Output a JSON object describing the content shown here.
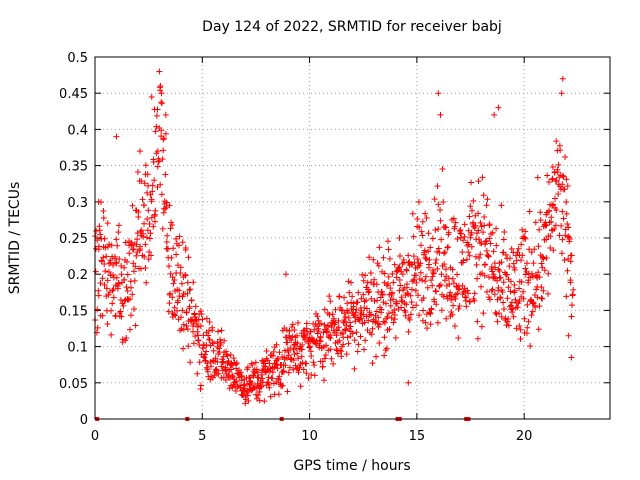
{
  "chart_data": {
    "type": "scatter",
    "title": "Day 124 of 2022, SRMTID for receiver babj",
    "xlabel": "GPS time / hours",
    "ylabel": "SRMTID / TECUs",
    "xlim": [
      0,
      24
    ],
    "ylim": [
      0,
      0.5
    ],
    "xticks": [
      "0",
      "5",
      "10",
      "15",
      "20"
    ],
    "yticks": [
      "0",
      "0.05",
      "0.1",
      "0.15",
      "0.2",
      "0.25",
      "0.3",
      "0.35",
      "0.4",
      "0.45",
      "0.5"
    ],
    "grid": true,
    "marker": "+",
    "color": "#ff0000",
    "zero_markers_x": [
      0.1,
      4.3,
      8.7,
      14.1,
      14.2,
      17.3,
      17.4
    ],
    "trend": [
      {
        "x": 0.0,
        "y": 0.2,
        "spread": 0.06
      },
      {
        "x": 0.6,
        "y": 0.2,
        "spread": 0.06
      },
      {
        "x": 1.3,
        "y": 0.17,
        "spread": 0.06
      },
      {
        "x": 1.9,
        "y": 0.23,
        "spread": 0.06
      },
      {
        "x": 2.5,
        "y": 0.28,
        "spread": 0.07
      },
      {
        "x": 3.0,
        "y": 0.37,
        "spread": 0.06
      },
      {
        "x": 3.6,
        "y": 0.2,
        "spread": 0.06
      },
      {
        "x": 4.3,
        "y": 0.15,
        "spread": 0.05
      },
      {
        "x": 5.0,
        "y": 0.11,
        "spread": 0.04
      },
      {
        "x": 6.0,
        "y": 0.08,
        "spread": 0.025
      },
      {
        "x": 7.0,
        "y": 0.045,
        "spread": 0.02
      },
      {
        "x": 8.0,
        "y": 0.06,
        "spread": 0.025
      },
      {
        "x": 9.0,
        "y": 0.09,
        "spread": 0.03
      },
      {
        "x": 10.0,
        "y": 0.1,
        "spread": 0.03
      },
      {
        "x": 11.0,
        "y": 0.12,
        "spread": 0.035
      },
      {
        "x": 12.0,
        "y": 0.14,
        "spread": 0.04
      },
      {
        "x": 13.0,
        "y": 0.16,
        "spread": 0.05
      },
      {
        "x": 14.0,
        "y": 0.17,
        "spread": 0.05
      },
      {
        "x": 15.0,
        "y": 0.2,
        "spread": 0.06
      },
      {
        "x": 16.0,
        "y": 0.23,
        "spread": 0.07
      },
      {
        "x": 17.0,
        "y": 0.2,
        "spread": 0.06
      },
      {
        "x": 18.0,
        "y": 0.25,
        "spread": 0.07
      },
      {
        "x": 19.0,
        "y": 0.17,
        "spread": 0.06
      },
      {
        "x": 20.0,
        "y": 0.18,
        "spread": 0.06
      },
      {
        "x": 21.0,
        "y": 0.24,
        "spread": 0.07
      },
      {
        "x": 21.6,
        "y": 0.33,
        "spread": 0.06
      },
      {
        "x": 22.3,
        "y": 0.18,
        "spread": 0.06
      }
    ],
    "peaks": [
      {
        "x": 3.0,
        "y": 0.48
      },
      {
        "x": 3.05,
        "y": 0.46
      },
      {
        "x": 3.1,
        "y": 0.45
      },
      {
        "x": 3.3,
        "y": 0.42
      },
      {
        "x": 16.0,
        "y": 0.45
      },
      {
        "x": 16.1,
        "y": 0.42
      },
      {
        "x": 18.6,
        "y": 0.42
      },
      {
        "x": 18.8,
        "y": 0.43
      },
      {
        "x": 21.8,
        "y": 0.47
      },
      {
        "x": 21.75,
        "y": 0.45
      },
      {
        "x": 1.0,
        "y": 0.39
      },
      {
        "x": 2.1,
        "y": 0.37
      },
      {
        "x": 8.9,
        "y": 0.2
      },
      {
        "x": 14.6,
        "y": 0.05
      },
      {
        "x": 22.2,
        "y": 0.085
      }
    ]
  }
}
